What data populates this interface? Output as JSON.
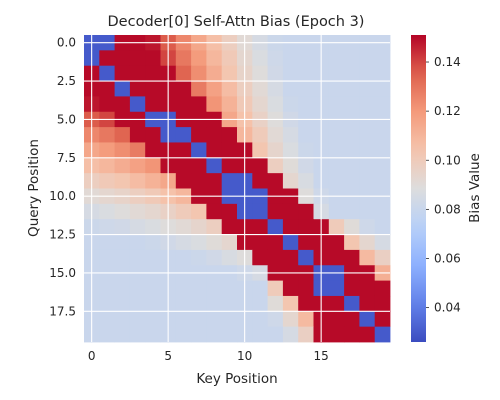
{
  "chart_data": {
    "type": "heatmap",
    "title": "Decoder[0] Self-Attn Bias (Epoch 3)",
    "xlabel": "Key Position",
    "ylabel": "Query Position",
    "rows": 20,
    "cols": 20,
    "x_ticks": [
      "0",
      "5",
      "10",
      "15"
    ],
    "x_tick_values": [
      0,
      5,
      10,
      15
    ],
    "y_ticks": [
      "0.0",
      "2.5",
      "5.0",
      "7.5",
      "10.0",
      "12.5",
      "15.0",
      "17.5"
    ],
    "y_tick_values": [
      0.0,
      2.5,
      5.0,
      7.5,
      10.0,
      12.5,
      15.0,
      17.5
    ],
    "colorbar": {
      "label": "Bias Value",
      "range": [
        0.026,
        0.151
      ],
      "ticks": [
        "0.04",
        "0.06",
        "0.08",
        "0.10",
        "0.12",
        "0.14"
      ],
      "tick_values": [
        0.04,
        0.06,
        0.08,
        0.1,
        0.12,
        0.14
      ]
    },
    "colormap": "coolwarm",
    "grid": true,
    "values": [
      [
        0.03,
        0.03,
        0.15,
        0.15,
        0.148,
        0.136,
        0.125,
        0.115,
        0.106,
        0.098,
        0.091,
        0.085,
        0.081,
        0.08,
        0.08,
        0.08,
        0.08,
        0.08,
        0.08,
        0.08
      ],
      [
        0.03,
        0.15,
        0.15,
        0.15,
        0.15,
        0.14,
        0.129,
        0.119,
        0.109,
        0.101,
        0.093,
        0.087,
        0.082,
        0.08,
        0.08,
        0.08,
        0.08,
        0.08,
        0.08,
        0.08
      ],
      [
        0.15,
        0.03,
        0.15,
        0.15,
        0.15,
        0.15,
        0.134,
        0.123,
        0.113,
        0.103,
        0.095,
        0.089,
        0.083,
        0.08,
        0.08,
        0.08,
        0.08,
        0.08,
        0.08,
        0.08
      ],
      [
        0.15,
        0.15,
        0.03,
        0.15,
        0.15,
        0.15,
        0.15,
        0.128,
        0.117,
        0.107,
        0.098,
        0.091,
        0.085,
        0.08,
        0.08,
        0.08,
        0.08,
        0.08,
        0.08,
        0.08
      ],
      [
        0.148,
        0.15,
        0.15,
        0.03,
        0.15,
        0.15,
        0.15,
        0.15,
        0.121,
        0.111,
        0.101,
        0.093,
        0.087,
        0.081,
        0.08,
        0.08,
        0.08,
        0.08,
        0.08,
        0.08
      ],
      [
        0.136,
        0.14,
        0.15,
        0.15,
        0.03,
        0.03,
        0.15,
        0.15,
        0.15,
        0.115,
        0.105,
        0.096,
        0.089,
        0.083,
        0.08,
        0.08,
        0.08,
        0.08,
        0.08,
        0.08
      ],
      [
        0.125,
        0.129,
        0.134,
        0.15,
        0.15,
        0.03,
        0.03,
        0.15,
        0.15,
        0.15,
        0.109,
        0.1,
        0.091,
        0.085,
        0.08,
        0.08,
        0.08,
        0.08,
        0.08,
        0.08
      ],
      [
        0.115,
        0.119,
        0.123,
        0.128,
        0.15,
        0.15,
        0.15,
        0.03,
        0.15,
        0.15,
        0.15,
        0.103,
        0.094,
        0.087,
        0.081,
        0.08,
        0.08,
        0.08,
        0.08,
        0.08
      ],
      [
        0.106,
        0.109,
        0.113,
        0.117,
        0.121,
        0.15,
        0.15,
        0.15,
        0.03,
        0.15,
        0.15,
        0.15,
        0.098,
        0.09,
        0.083,
        0.08,
        0.08,
        0.08,
        0.08,
        0.08
      ],
      [
        0.098,
        0.101,
        0.103,
        0.107,
        0.111,
        0.115,
        0.15,
        0.15,
        0.15,
        0.03,
        0.03,
        0.15,
        0.15,
        0.093,
        0.086,
        0.08,
        0.08,
        0.08,
        0.08,
        0.08
      ],
      [
        0.091,
        0.093,
        0.095,
        0.098,
        0.101,
        0.105,
        0.109,
        0.15,
        0.15,
        0.03,
        0.03,
        0.03,
        0.15,
        0.15,
        0.089,
        0.082,
        0.08,
        0.08,
        0.08,
        0.08
      ],
      [
        0.085,
        0.087,
        0.089,
        0.091,
        0.093,
        0.096,
        0.1,
        0.103,
        0.15,
        0.15,
        0.03,
        0.03,
        0.15,
        0.15,
        0.15,
        0.085,
        0.08,
        0.08,
        0.08,
        0.08
      ],
      [
        0.081,
        0.082,
        0.083,
        0.085,
        0.087,
        0.089,
        0.091,
        0.094,
        0.098,
        0.15,
        0.15,
        0.15,
        0.03,
        0.15,
        0.15,
        0.15,
        0.1,
        0.09,
        0.082,
        0.08
      ],
      [
        0.08,
        0.08,
        0.08,
        0.08,
        0.081,
        0.083,
        0.085,
        0.087,
        0.09,
        0.093,
        0.15,
        0.15,
        0.15,
        0.03,
        0.15,
        0.15,
        0.15,
        0.103,
        0.093,
        0.085
      ],
      [
        0.08,
        0.08,
        0.08,
        0.08,
        0.08,
        0.08,
        0.08,
        0.081,
        0.083,
        0.086,
        0.089,
        0.15,
        0.15,
        0.15,
        0.03,
        0.15,
        0.15,
        0.15,
        0.108,
        0.097
      ],
      [
        0.08,
        0.08,
        0.08,
        0.08,
        0.08,
        0.08,
        0.08,
        0.08,
        0.08,
        0.08,
        0.082,
        0.085,
        0.15,
        0.15,
        0.15,
        0.03,
        0.03,
        0.15,
        0.15,
        0.112
      ],
      [
        0.08,
        0.08,
        0.08,
        0.08,
        0.08,
        0.08,
        0.08,
        0.08,
        0.08,
        0.08,
        0.08,
        0.08,
        0.1,
        0.15,
        0.15,
        0.03,
        0.03,
        0.15,
        0.15,
        0.15
      ],
      [
        0.08,
        0.08,
        0.08,
        0.08,
        0.08,
        0.08,
        0.08,
        0.08,
        0.08,
        0.08,
        0.08,
        0.08,
        0.09,
        0.103,
        0.15,
        0.15,
        0.15,
        0.03,
        0.15,
        0.15
      ],
      [
        0.08,
        0.08,
        0.08,
        0.08,
        0.08,
        0.08,
        0.08,
        0.08,
        0.08,
        0.08,
        0.08,
        0.08,
        0.082,
        0.093,
        0.108,
        0.15,
        0.15,
        0.15,
        0.03,
        0.15
      ],
      [
        0.08,
        0.08,
        0.08,
        0.08,
        0.08,
        0.08,
        0.08,
        0.08,
        0.08,
        0.08,
        0.08,
        0.08,
        0.08,
        0.085,
        0.097,
        0.15,
        0.15,
        0.15,
        0.15,
        0.03
      ]
    ]
  }
}
